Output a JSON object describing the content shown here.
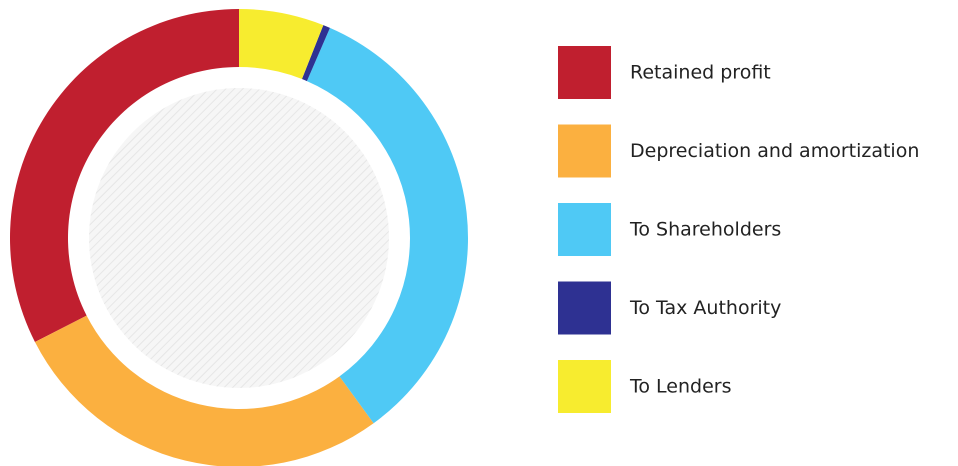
{
  "chart_data": {
    "type": "donut",
    "categories": [
      "Retained profit",
      "Depreciation and amortization",
      "To Shareholders",
      "To Tax Authority",
      "To Lenders"
    ],
    "values": [
      32.5,
      27.5,
      33.5,
      0.5,
      6
    ],
    "colors": [
      "#c01f2f",
      "#fbb040",
      "#4fc9f5",
      "#2e3192",
      "#f7ec2f"
    ],
    "legend": "right"
  }
}
